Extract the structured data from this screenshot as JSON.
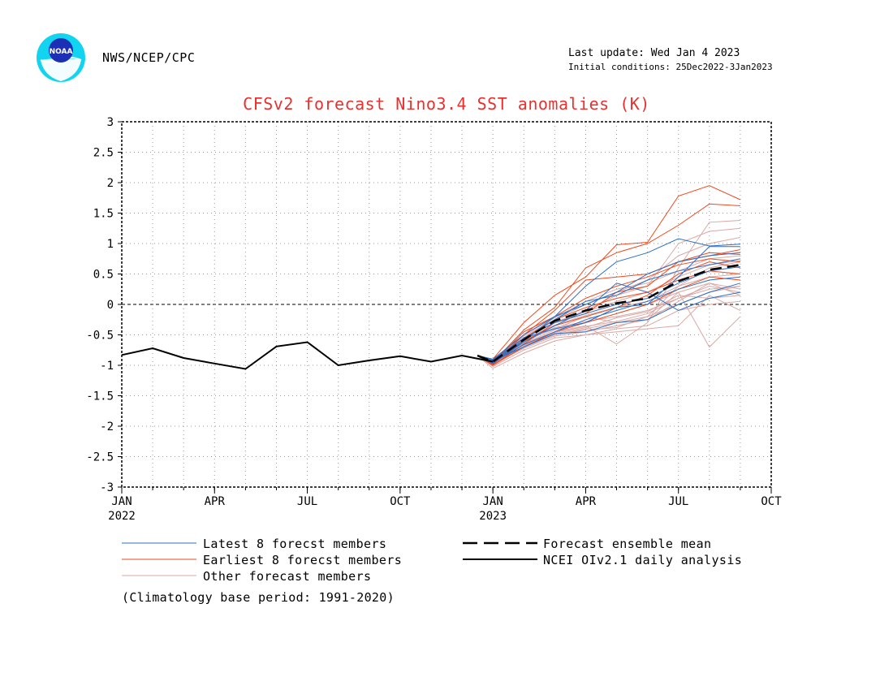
{
  "header": {
    "agency": "NWS/NCEP/CPC",
    "last_update": "Last update: Wed Jan 4 2023",
    "initial_conditions": "Initial conditions: 25Dec2022-3Jan2023",
    "logo_text": "NOAA",
    "logo_colors": {
      "outer": "#13d4f0",
      "inner": "#1c2fb5",
      "bird": "#ffffff"
    }
  },
  "legend": {
    "latest": "Latest 8 forecst members",
    "earliest": "Earliest 8 forecst members",
    "other": "Other forecast members",
    "mean": "Forecast ensemble mean",
    "analysis": "NCEI OIv2.1 daily analysis"
  },
  "footnote": "(Climatology base period: 1991-2020)",
  "colors": {
    "latest": "#2a6fc8",
    "earliest": "#ee4a1f",
    "other": "#d9a9a6",
    "mean": "#000000",
    "analysis": "#000000",
    "title": "#e8312f"
  },
  "chart_data": {
    "type": "line",
    "title": "CFSv2 forecast Nino3.4 SST anomalies (K)",
    "xlabel": "",
    "ylabel": "",
    "ylim": [
      -3,
      3
    ],
    "yticks": [
      3,
      2.5,
      2,
      1.5,
      1,
      0.5,
      0,
      -0.5,
      -1,
      -1.5,
      -2,
      -2.5,
      -3
    ],
    "yticklabels": [
      "3",
      "2.5",
      "2",
      "1.5",
      "1",
      "0.5",
      "0",
      "-0.5",
      "-1",
      "-1.5",
      "-2",
      "-2.5",
      "-3"
    ],
    "x_axis": {
      "start": "2022-01",
      "end": "2023-10",
      "unit": "month"
    },
    "xticks": [
      {
        "month": 0,
        "label": "JAN",
        "year": "2022"
      },
      {
        "month": 3,
        "label": "APR",
        "year": ""
      },
      {
        "month": 6,
        "label": "JUL",
        "year": ""
      },
      {
        "month": 9,
        "label": "OCT",
        "year": ""
      },
      {
        "month": 12,
        "label": "JAN",
        "year": "2023"
      },
      {
        "month": 15,
        "label": "APR",
        "year": ""
      },
      {
        "month": 18,
        "label": "JUL",
        "year": ""
      },
      {
        "month": 21,
        "label": "OCT",
        "year": ""
      }
    ],
    "grid": true,
    "zero_line": true,
    "analysis": {
      "name": "NCEI OIv2.1 daily analysis",
      "x": [
        0,
        1,
        2,
        3,
        4,
        5,
        6,
        7,
        8,
        9,
        10,
        11,
        12
      ],
      "y": [
        -0.83,
        -0.72,
        -0.88,
        -0.97,
        -1.06,
        -0.69,
        -0.62,
        -1.0,
        -0.92,
        -0.85,
        -0.94,
        -0.84,
        -0.94
      ]
    },
    "forecast_x": [
      11.5,
      12,
      13,
      14,
      15,
      16,
      17,
      18,
      19,
      20
    ],
    "ensemble_mean": {
      "name": "Forecast ensemble mean",
      "y": [
        -0.84,
        -0.94,
        -0.58,
        -0.27,
        -0.1,
        0.02,
        0.1,
        0.38,
        0.57,
        0.65
      ]
    },
    "latest_members": [
      [
        -0.84,
        -0.92,
        -0.55,
        -0.3,
        -0.15,
        0.0,
        0.1,
        0.35,
        0.55,
        0.62
      ],
      [
        -0.84,
        -0.95,
        -0.6,
        -0.2,
        0.3,
        0.7,
        0.85,
        1.08,
        0.96,
        0.99
      ],
      [
        -0.84,
        -0.96,
        -0.66,
        -0.45,
        -0.25,
        -0.1,
        0.05,
        0.25,
        0.4,
        0.45
      ],
      [
        -0.84,
        -0.9,
        -0.5,
        -0.2,
        0.0,
        0.2,
        0.5,
        0.7,
        0.8,
        0.85
      ],
      [
        -0.84,
        -0.93,
        -0.7,
        -0.48,
        -0.45,
        -0.3,
        -0.25,
        0.0,
        0.2,
        0.35
      ],
      [
        -0.84,
        -0.97,
        -0.62,
        -0.35,
        -0.1,
        0.35,
        0.2,
        -0.1,
        0.1,
        0.2
      ],
      [
        -0.84,
        -0.94,
        -0.58,
        -0.25,
        0.05,
        0.15,
        0.4,
        0.55,
        0.65,
        0.75
      ],
      [
        -0.84,
        -0.91,
        -0.55,
        -0.4,
        -0.3,
        -0.05,
        0.0,
        0.45,
        0.95,
        0.95
      ]
    ],
    "earliest_members": [
      [
        -0.84,
        -0.9,
        -0.3,
        0.15,
        0.45,
        0.98,
        1.02,
        1.78,
        1.95,
        1.72
      ],
      [
        -0.84,
        -0.95,
        -0.42,
        -0.05,
        0.6,
        0.85,
        1.0,
        1.3,
        1.65,
        1.62
      ],
      [
        -0.84,
        -1.0,
        -0.65,
        -0.3,
        -0.15,
        0.2,
        0.3,
        0.7,
        0.8,
        0.9
      ],
      [
        -0.84,
        -0.97,
        -0.5,
        -0.1,
        0.4,
        0.45,
        0.5,
        0.7,
        0.85,
        0.82
      ],
      [
        -0.84,
        -0.98,
        -0.6,
        -0.35,
        -0.2,
        -0.05,
        0.15,
        0.5,
        0.7,
        0.6
      ],
      [
        -0.84,
        -0.96,
        -0.45,
        -0.2,
        0.1,
        0.3,
        0.45,
        0.65,
        0.75,
        0.7
      ],
      [
        -0.84,
        -0.93,
        -0.55,
        -0.25,
        -0.05,
        0.1,
        0.2,
        0.4,
        0.55,
        0.5
      ],
      [
        -0.84,
        -0.99,
        -0.7,
        -0.45,
        -0.3,
        -0.15,
        0.0,
        0.25,
        0.45,
        0.4
      ]
    ],
    "other_members": [
      [
        -0.84,
        -0.98,
        -0.7,
        -0.5,
        -0.4,
        -0.3,
        -0.2,
        0.0,
        0.2,
        0.3
      ],
      [
        -0.84,
        -1.02,
        -0.75,
        -0.55,
        -0.5,
        -0.45,
        -0.4,
        -0.35,
        0.15,
        -0.1
      ],
      [
        -0.84,
        -0.95,
        -0.6,
        -0.4,
        -0.2,
        -0.3,
        -0.25,
        0.2,
        -0.7,
        -0.2
      ],
      [
        -0.84,
        -1.0,
        -0.65,
        -0.45,
        -0.35,
        -0.65,
        -0.3,
        0.6,
        1.35,
        1.38
      ],
      [
        -0.84,
        -0.97,
        -0.55,
        -0.3,
        -0.1,
        0.15,
        0.3,
        1.0,
        1.2,
        1.25
      ],
      [
        -0.84,
        -0.93,
        -0.52,
        -0.25,
        0.0,
        0.2,
        0.4,
        0.8,
        1.0,
        1.1
      ],
      [
        -0.84,
        -1.05,
        -0.8,
        -0.6,
        -0.5,
        -0.4,
        -0.35,
        -0.1,
        0.0,
        0.05
      ],
      [
        -0.84,
        -0.96,
        -0.62,
        -0.38,
        -0.28,
        -0.2,
        -0.1,
        0.1,
        0.25,
        0.3
      ],
      [
        -0.84,
        -0.99,
        -0.66,
        -0.5,
        -0.42,
        -0.38,
        -0.2,
        0.3,
        0.6,
        0.7
      ],
      [
        -0.84,
        -0.92,
        -0.5,
        -0.22,
        0.05,
        0.25,
        0.35,
        0.55,
        0.75,
        0.8
      ],
      [
        -0.84,
        -1.01,
        -0.7,
        -0.48,
        -0.38,
        -0.22,
        -0.12,
        0.15,
        0.1,
        0.15
      ],
      [
        -0.84,
        -0.94,
        -0.58,
        -0.34,
        -0.18,
        -0.05,
        0.05,
        0.3,
        0.45,
        0.5
      ],
      [
        -0.84,
        -0.97,
        -0.64,
        -0.42,
        -0.3,
        -0.15,
        0.0,
        0.2,
        0.35,
        0.25
      ],
      [
        -0.84,
        -0.99,
        -0.72,
        -0.52,
        -0.45,
        -0.35,
        -0.25,
        0.05,
        0.35,
        0.15
      ],
      [
        -0.84,
        -0.95,
        -0.56,
        -0.3,
        -0.12,
        0.05,
        0.2,
        0.45,
        0.65,
        0.72
      ],
      [
        -0.84,
        -1.0,
        -0.68,
        -0.46,
        -0.36,
        -0.28,
        -0.15,
        0.1,
        0.3,
        0.2
      ]
    ]
  }
}
